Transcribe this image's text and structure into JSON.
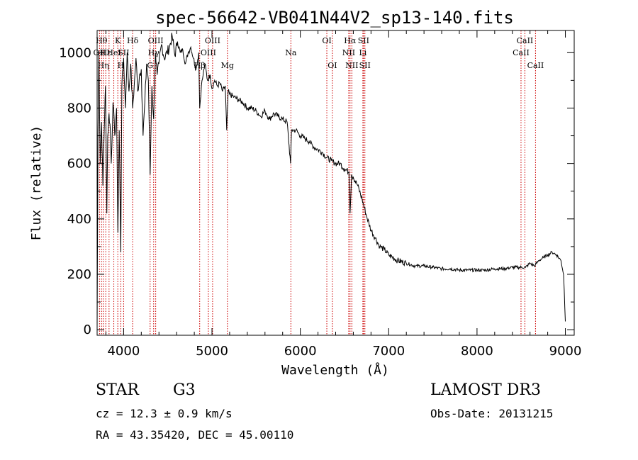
{
  "chart_data": {
    "type": "line",
    "title": "spec-56642-VB041N44V2_sp13-140.fits",
    "xlabel": "Wavelength (Å)",
    "ylabel": "Flux (relative)",
    "xlim": [
      3700,
      9100
    ],
    "ylim": [
      -20,
      1080
    ],
    "xticks": [
      4000,
      5000,
      6000,
      7000,
      8000,
      9000
    ],
    "yticks": [
      0,
      200,
      400,
      600,
      800,
      1000
    ],
    "series": [
      {
        "name": "flux",
        "x": [
          3700,
          3710,
          3720,
          3735,
          3750,
          3765,
          3780,
          3795,
          3810,
          3820,
          3835,
          3850,
          3860,
          3880,
          3900,
          3920,
          3935,
          3950,
          3968,
          3980,
          4000,
          4020,
          4040,
          4060,
          4080,
          4102,
          4120,
          4140,
          4160,
          4180,
          4200,
          4220,
          4240,
          4260,
          4280,
          4300,
          4320,
          4340,
          4360,
          4380,
          4400,
          4430,
          4460,
          4490,
          4520,
          4550,
          4580,
          4610,
          4640,
          4670,
          4700,
          4730,
          4760,
          4790,
          4820,
          4850,
          4861,
          4880,
          4900,
          4920,
          4950,
          4980,
          5000,
          5030,
          5060,
          5090,
          5120,
          5150,
          5167,
          5183,
          5200,
          5250,
          5300,
          5350,
          5400,
          5450,
          5500,
          5550,
          5600,
          5650,
          5700,
          5750,
          5800,
          5850,
          5890,
          5900,
          5950,
          6000,
          6050,
          6100,
          6150,
          6200,
          6250,
          6300,
          6350,
          6400,
          6450,
          6500,
          6550,
          6563,
          6580,
          6600,
          6650,
          6700,
          6750,
          6800,
          6850,
          6900,
          6950,
          7000,
          7100,
          7200,
          7300,
          7400,
          7500,
          7600,
          7700,
          7800,
          7900,
          8000,
          8100,
          8200,
          8300,
          8400,
          8500,
          8550,
          8600,
          8650,
          8700,
          8750,
          8800,
          8850,
          8900,
          8950,
          8980,
          9000
        ],
        "values": [
          0,
          700,
          1000,
          600,
          750,
          520,
          720,
          880,
          420,
          700,
          780,
          720,
          600,
          820,
          700,
          800,
          350,
          720,
          280,
          880,
          980,
          800,
          1000,
          860,
          960,
          800,
          880,
          980,
          860,
          920,
          940,
          700,
          820,
          960,
          900,
          560,
          880,
          760,
          1000,
          920,
          960,
          1030,
          980,
          1000,
          1020,
          1060,
          990,
          1040,
          1000,
          1010,
          960,
          1000,
          1020,
          980,
          940,
          1000,
          800,
          880,
          920,
          960,
          900,
          920,
          870,
          900,
          880,
          890,
          860,
          880,
          720,
          860,
          850,
          840,
          830,
          820,
          800,
          800,
          790,
          770,
          790,
          760,
          780,
          770,
          760,
          750,
          600,
          720,
          720,
          700,
          690,
          680,
          660,
          650,
          640,
          620,
          610,
          600,
          600,
          580,
          570,
          420,
          560,
          550,
          520,
          470,
          410,
          360,
          330,
          300,
          290,
          270,
          250,
          240,
          230,
          230,
          225,
          220,
          220,
          215,
          215,
          215,
          215,
          220,
          220,
          225,
          225,
          225,
          240,
          230,
          250,
          260,
          270,
          280,
          270,
          250,
          200,
          30
        ]
      }
    ],
    "annotations": {
      "lines": [
        {
          "x": 3727,
          "labels": [
            "OII"
          ],
          "row": [
            1
          ]
        },
        {
          "x": 3750,
          "labels": [
            "Hθ"
          ],
          "row": [
            0
          ]
        },
        {
          "x": 3770,
          "labels": [
            "Hη"
          ],
          "row": [
            2
          ]
        },
        {
          "x": 3798,
          "labels": [
            "Hε"
          ],
          "row": [
            1
          ]
        },
        {
          "x": 3835,
          "labels": [],
          "row": []
        },
        {
          "x": 3889,
          "labels": [
            "HeI"
          ],
          "row": [
            1
          ]
        },
        {
          "x": 3934,
          "labels": [
            "K"
          ],
          "row": [
            0
          ]
        },
        {
          "x": 3968,
          "labels": [
            "H"
          ],
          "row": [
            2
          ]
        },
        {
          "x": 4000,
          "labels": [
            "SII"
          ],
          "row": [
            1
          ]
        },
        {
          "x": 4102,
          "labels": [
            "Hδ"
          ],
          "row": [
            0
          ]
        },
        {
          "x": 4300,
          "labels": [
            "G"
          ],
          "row": [
            2
          ]
        },
        {
          "x": 4340,
          "labels": [
            "Hγ"
          ],
          "row": [
            1
          ]
        },
        {
          "x": 4363,
          "labels": [
            "OIII"
          ],
          "row": [
            0
          ]
        },
        {
          "x": 4861,
          "labels": [
            "Hβ"
          ],
          "row": [
            2
          ]
        },
        {
          "x": 4959,
          "labels": [
            "OIII"
          ],
          "row": [
            1
          ]
        },
        {
          "x": 5007,
          "labels": [
            "OIII"
          ],
          "row": [
            0
          ]
        },
        {
          "x": 5175,
          "labels": [
            "Mg"
          ],
          "row": [
            2
          ]
        },
        {
          "x": 5893,
          "labels": [
            "Na"
          ],
          "row": [
            1
          ]
        },
        {
          "x": 6300,
          "labels": [
            "OI"
          ],
          "row": [
            0
          ]
        },
        {
          "x": 6363,
          "labels": [
            "OI"
          ],
          "row": [
            2
          ]
        },
        {
          "x": 6548,
          "labels": [
            "NII"
          ],
          "row": [
            1
          ]
        },
        {
          "x": 6563,
          "labels": [
            "Hα"
          ],
          "row": [
            0
          ]
        },
        {
          "x": 6583,
          "labels": [
            "NII"
          ],
          "row": [
            2
          ]
        },
        {
          "x": 6708,
          "labels": [
            "Li"
          ],
          "row": [
            1
          ]
        },
        {
          "x": 6716,
          "labels": [
            "SII"
          ],
          "row": [
            0
          ]
        },
        {
          "x": 6731,
          "labels": [
            "SII"
          ],
          "row": [
            2
          ]
        },
        {
          "x": 8498,
          "labels": [
            "CaII"
          ],
          "row": [
            1
          ]
        },
        {
          "x": 8542,
          "labels": [
            "CaII"
          ],
          "row": [
            0
          ]
        },
        {
          "x": 8662,
          "labels": [
            "CaII"
          ],
          "row": [
            2
          ]
        }
      ]
    }
  },
  "info": {
    "class": "STAR",
    "subclass": "G3",
    "survey": "LAMOST DR3",
    "cz": "cz = 12.3 ± 0.9 km/s",
    "obs_date": "Obs-Date: 20131215",
    "radec": "RA =  43.35420, DEC =  45.00110"
  },
  "colors": {
    "line_marker": "#cc0000",
    "spectrum": "#000000"
  }
}
